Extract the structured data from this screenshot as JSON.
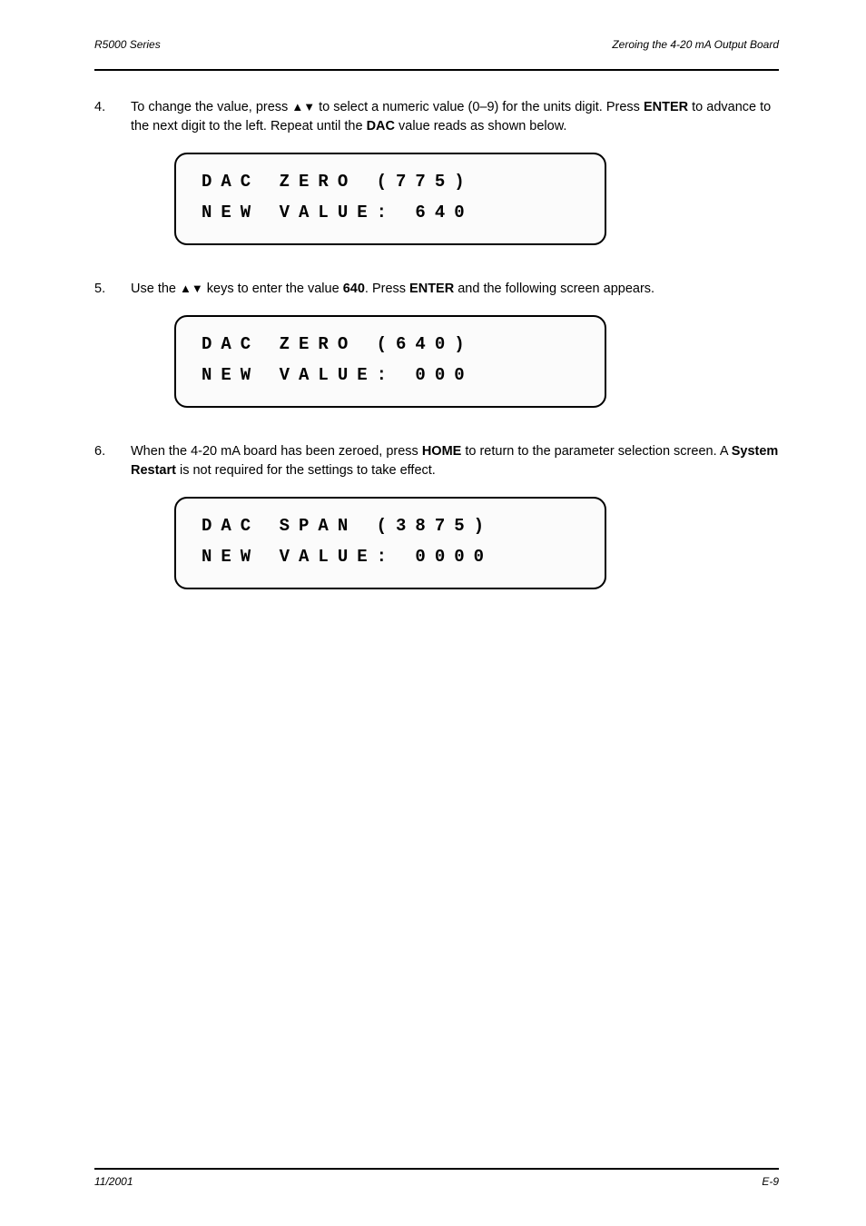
{
  "header": {
    "left": "R5000 Series",
    "right": "Zeroing the 4-20 mA Output Board"
  },
  "steps": [
    {
      "num": "4.",
      "html": "To change the value, press <span class='arrows'>▲▼</span> to select a numeric value (0–9) for the units digit. Press <b>ENTER</b> to advance to the next digit to the left. Repeat until the <b>DAC</b> value reads as shown below."
    },
    {
      "num": "5.",
      "html": "Use the <span class='arrows'>▲▼</span> keys to enter the value <b>640</b>. Press <b>ENTER</b> and the following screen appears."
    },
    {
      "num": "6.",
      "html": "When the 4-20 mA board has been zeroed, press <b>HOME</b> to return to the parameter selection screen. A <b>System Restart</b> is not required for the settings to take effect."
    }
  ],
  "displays": [
    {
      "line1": "DAC ZERO (775)",
      "line2": "NEW VALUE:   640"
    },
    {
      "line1": "DAC ZERO (640)",
      "line2": "NEW VALUE:   000"
    },
    {
      "line1": "DAC SPAN (3875)",
      "line2": "NEW VALUE:   0000"
    }
  ],
  "footer": {
    "left": "11/2001",
    "right": "E-9"
  },
  "colors": {
    "text": "#000000",
    "background": "#ffffff",
    "box_bg": "#fbfbfb",
    "rule": "#000000"
  },
  "fonts": {
    "body": "Arial, Helvetica, sans-serif",
    "mono": "Courier New, Courier, monospace"
  }
}
